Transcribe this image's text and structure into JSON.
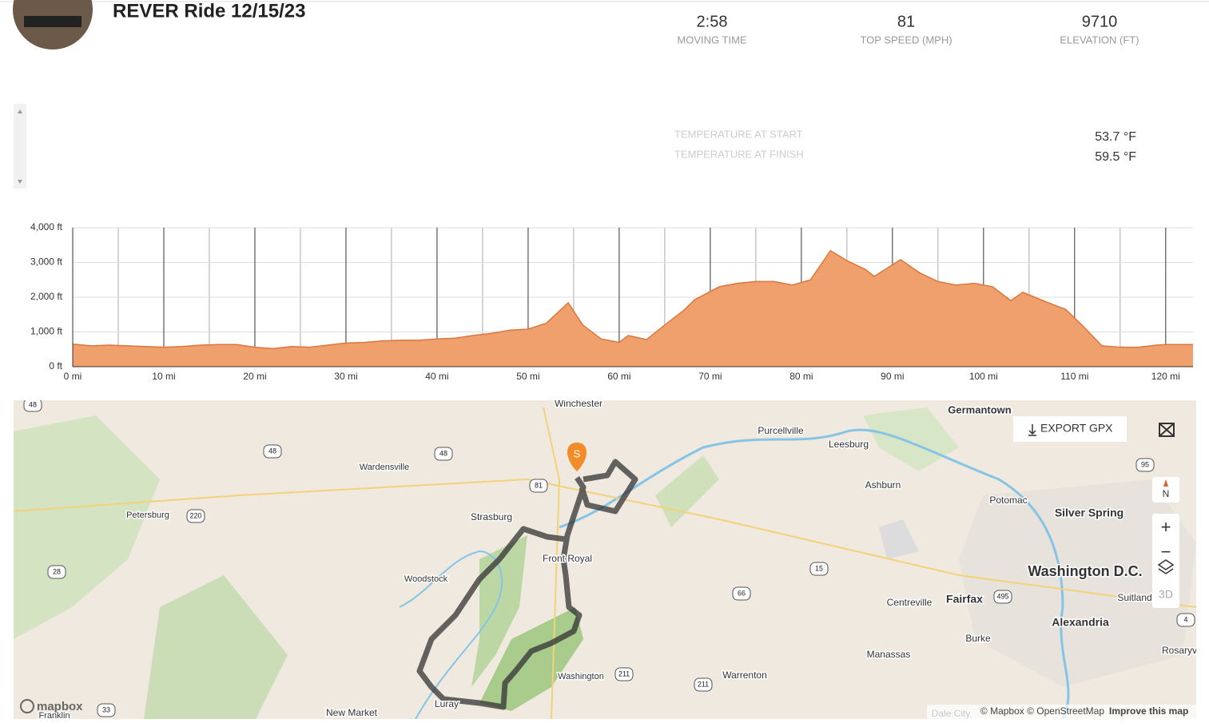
{
  "header": {
    "title": "REVER Ride 12/15/23"
  },
  "stats": [
    {
      "value": "2:58",
      "label": "MOVING TIME"
    },
    {
      "value": "81",
      "label": "TOP SPEED (MPH)"
    },
    {
      "value": "9710",
      "label": "ELEVATION (FT)"
    }
  ],
  "weather": [
    {
      "label": "TEMPERATURE AT START",
      "value": "53.7 °F"
    },
    {
      "label": "TEMPERATURE AT FINISH",
      "value": "59.5 °F"
    }
  ],
  "chart_data": {
    "type": "area",
    "color": "#f0a06c",
    "line_color": "#d9773f",
    "x": [
      0,
      2,
      4,
      6,
      8,
      10,
      12,
      14,
      16,
      18,
      20,
      22,
      24,
      26,
      28,
      30,
      32,
      34,
      36,
      38,
      40,
      42,
      44,
      46,
      48,
      50,
      52,
      54.4,
      56,
      58,
      60,
      61,
      63,
      65,
      67,
      68.3,
      71,
      73,
      75,
      77,
      79,
      81,
      83.2,
      85,
      87,
      88,
      90.9,
      93,
      95,
      97,
      99,
      101,
      103,
      104.3,
      107,
      109,
      111,
      113,
      115,
      117,
      119,
      120,
      123
    ],
    "values": [
      650,
      600,
      620,
      600,
      580,
      560,
      580,
      620,
      640,
      640,
      560,
      520,
      580,
      560,
      620,
      680,
      700,
      740,
      760,
      760,
      800,
      820,
      900,
      960,
      1050,
      1080,
      1250,
      1840,
      1200,
      800,
      700,
      900,
      780,
      1200,
      1600,
      1930,
      2300,
      2400,
      2450,
      2450,
      2350,
      2500,
      3340,
      3050,
      2800,
      2600,
      3080,
      2700,
      2450,
      2350,
      2400,
      2300,
      1900,
      2140,
      1850,
      1650,
      1150,
      600,
      560,
      560,
      620,
      640,
      640
    ],
    "xlim": [
      0,
      123
    ],
    "ylim": [
      0,
      4000
    ],
    "xticks": [
      {
        "value": 0,
        "label": "0 mi"
      },
      {
        "value": 10,
        "label": "10 mi"
      },
      {
        "value": 20,
        "label": "20 mi"
      },
      {
        "value": 30,
        "label": "30 mi"
      },
      {
        "value": 40,
        "label": "40 mi"
      },
      {
        "value": 50,
        "label": "50 mi"
      },
      {
        "value": 60,
        "label": "60 mi"
      },
      {
        "value": 70,
        "label": "70 mi"
      },
      {
        "value": 80,
        "label": "80 mi"
      },
      {
        "value": 90,
        "label": "90 mi"
      },
      {
        "value": 100,
        "label": "100 mi"
      },
      {
        "value": 110,
        "label": "110 mi"
      },
      {
        "value": 120,
        "label": "120 mi"
      }
    ],
    "x_minor_ticks": [
      5,
      15,
      25,
      35,
      45,
      55,
      65,
      75,
      85,
      95,
      105,
      115
    ],
    "yticks": [
      {
        "value": 0,
        "label": "0 ft"
      },
      {
        "value": 1000,
        "label": "1,000 ft"
      },
      {
        "value": 2000,
        "label": "2,000 ft"
      },
      {
        "value": 3000,
        "label": "3,000 ft"
      },
      {
        "value": 4000,
        "label": "4,000 ft"
      }
    ],
    "grid": true
  },
  "map": {
    "places": [
      "Winchester",
      "Purcellville",
      "Leesburg",
      "Germantown",
      "Wardensville",
      "Petersburg",
      "Strasburg",
      "Ashburn",
      "Potomac",
      "Silver Spring",
      "Front Royal",
      "Woodstock",
      "Washington D.C.",
      "Fairfax",
      "Centreville",
      "Suitland",
      "Alexandria",
      "Burke",
      "Manassas",
      "Rosaryv",
      "Washington",
      "Warrenton",
      "Luray",
      "New Market",
      "Franklin",
      "Dale City"
    ],
    "shields": [
      "48",
      "48",
      "48",
      "220",
      "28",
      "81",
      "66",
      "15",
      "211",
      "211",
      "495",
      "95",
      "4",
      "33"
    ],
    "start_marker": "S",
    "export": "EXPORT GPX",
    "compass": "N",
    "zoom_in": "+",
    "zoom_out": "−",
    "three_d": "3D",
    "logo": "mapbox",
    "attribution": "© Mapbox © OpenStreetMap",
    "improve": "Improve this map"
  }
}
